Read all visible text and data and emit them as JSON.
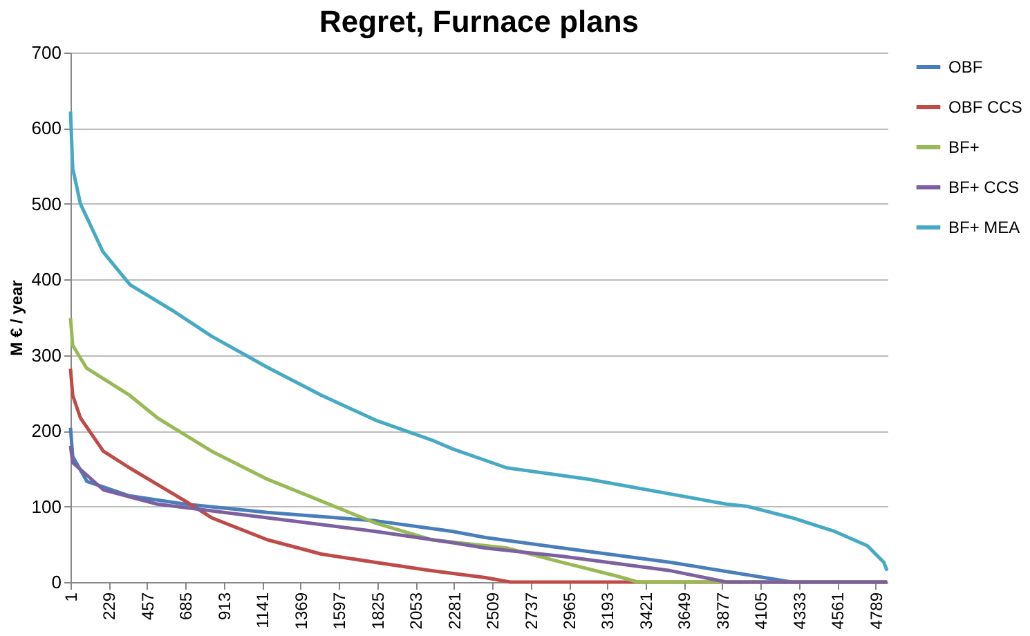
{
  "chart_data": {
    "type": "line",
    "title": "Regret, Furnace plans",
    "ylabel": "M € / year",
    "xlim": [
      1,
      4860
    ],
    "xticks": [
      1,
      229,
      457,
      685,
      913,
      1141,
      1369,
      1597,
      1825,
      2053,
      2281,
      2509,
      2737,
      2965,
      3193,
      3421,
      3649,
      3877,
      4105,
      4333,
      4561,
      4789
    ],
    "ylim": [
      0,
      700
    ],
    "yticks": [
      0,
      100,
      200,
      300,
      400,
      500,
      600,
      700
    ],
    "grid": "y",
    "legend": "right",
    "marker": "none",
    "line_style": "solid",
    "series": [
      {
        "name": "OBF",
        "color": "#4a7ebb",
        "x": [
          1,
          14,
          99,
          352,
          684,
          1171,
          1815,
          2273,
          2468,
          2927,
          3570,
          4292,
          4857
        ],
        "values": [
          204,
          166,
          133,
          114,
          103,
          92,
          81,
          67,
          59,
          45,
          26,
          0,
          0
        ]
      },
      {
        "name": "OBF CCS",
        "color": "#be4b48",
        "x": [
          1,
          14,
          60,
          196,
          352,
          518,
          684,
          840,
          1171,
          1493,
          1815,
          2147,
          2468,
          2615,
          4857
        ],
        "values": [
          282,
          247,
          217,
          173,
          151,
          129,
          107,
          85,
          56,
          37,
          26,
          15,
          6,
          0,
          0
        ]
      },
      {
        "name": "BF+",
        "color": "#98b954",
        "x": [
          1,
          14,
          96,
          352,
          518,
          840,
          1171,
          1493,
          1815,
          2147,
          2595,
          2927,
          3249,
          3375,
          4857
        ],
        "values": [
          349,
          313,
          283,
          247,
          217,
          173,
          136,
          107,
          78,
          56,
          45,
          26,
          8,
          0,
          0
        ]
      },
      {
        "name": "BF+ CCS",
        "color": "#7d60a0",
        "x": [
          1,
          14,
          196,
          518,
          1171,
          1815,
          2273,
          2468,
          2927,
          3570,
          3902,
          4857
        ],
        "values": [
          180,
          158,
          122,
          103,
          85,
          67,
          52,
          45,
          34,
          15,
          0,
          0
        ]
      },
      {
        "name": "BF+ MEA",
        "color": "#46aac5",
        "x": [
          1,
          14,
          60,
          193,
          355,
          615,
          840,
          1171,
          1493,
          1815,
          2147,
          2273,
          2595,
          3083,
          3902,
          4028,
          4292,
          4545,
          4740,
          4838,
          4857
        ],
        "values": [
          622,
          547,
          500,
          437,
          393,
          358,
          325,
          284,
          247,
          214,
          188,
          176,
          151,
          136,
          103,
          100,
          85,
          67,
          48,
          26,
          15
        ]
      }
    ]
  }
}
